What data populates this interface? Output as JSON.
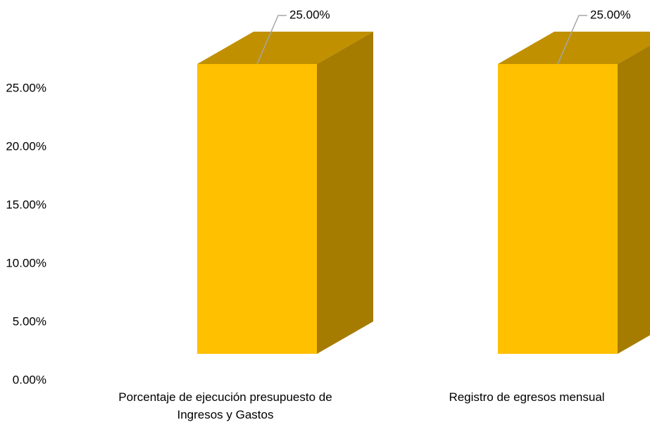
{
  "chart_data": {
    "type": "bar",
    "bar_style": "3d",
    "categories": [
      "Porcentaje de ejecución presupuesto de Ingresos y Gastos",
      "Registro de egresos mensual"
    ],
    "category_label_lines": [
      [
        "Porcentaje de ejecución presupuesto de",
        "Ingresos y Gastos"
      ],
      [
        "Registro de egresos mensual"
      ]
    ],
    "values": [
      25,
      25
    ],
    "data_labels": [
      "25.00%",
      "25.00%"
    ],
    "ylim": [
      0,
      25
    ],
    "yticks": [
      0,
      5,
      10,
      15,
      20,
      25
    ],
    "ytick_labels": [
      "0.00%",
      "5.00%",
      "10.00%",
      "15.00%",
      "20.00%",
      "25.00%"
    ],
    "grid": false,
    "legend": "none",
    "title": "",
    "xlabel": "",
    "ylabel": ""
  },
  "colors": {
    "bar_front": "#FFC000",
    "bar_top": "#C09000",
    "bar_side": "#A67C00",
    "leader_line": "#A6A6A6",
    "text": "#000000"
  }
}
